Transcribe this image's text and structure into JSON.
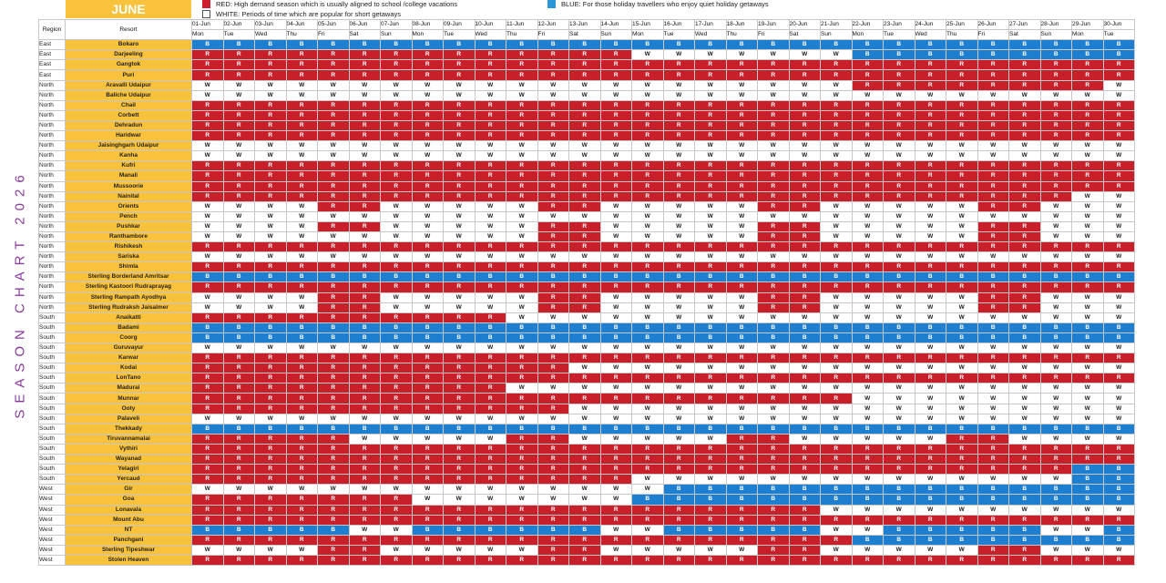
{
  "side_title": "SEASON CHART 2026",
  "month": "JUNE",
  "legend": {
    "red": "RED: High demand season which is usually aligned to school /college vacations",
    "white": "WHITE: Periods of time which are popular for short getaways",
    "blue": "BLUE: For those holiday travellers who enjoy quiet holiday getaways"
  },
  "colors": {
    "red": "#c8202a",
    "white": "#ffffff",
    "blue": "#1e7fd0",
    "resort_bg": "#f9c23c",
    "title": "#8a3a9b"
  },
  "headers": {
    "region": "Region",
    "resort": "Resort"
  },
  "dates": [
    "01-Jun",
    "02-Jun",
    "03-Jun",
    "04-Jun",
    "05-Jun",
    "06-Jun",
    "07-Jun",
    "08-Jun",
    "09-Jun",
    "10-Jun",
    "11-Jun",
    "12-Jun",
    "13-Jun",
    "14-Jun",
    "15-Jun",
    "16-Jun",
    "17-Jun",
    "18-Jun",
    "19-Jun",
    "20-Jun",
    "21-Jun",
    "22-Jun",
    "23-Jun",
    "24-Jun",
    "25-Jun",
    "26-Jun",
    "27-Jun",
    "28-Jun",
    "29-Jun",
    "30-Jun"
  ],
  "days": [
    "Mon",
    "Tue",
    "Wed",
    "Thu",
    "Fri",
    "Sat",
    "Sun",
    "Mon",
    "Tue",
    "Wed",
    "Thu",
    "Fri",
    "Sat",
    "Sun",
    "Mon",
    "Tue",
    "Wed",
    "Thu",
    "Fri",
    "Sat",
    "Sun",
    "Mon",
    "Tue",
    "Wed",
    "Thu",
    "Fri",
    "Sat",
    "Sun",
    "Mon",
    "Tue"
  ],
  "rows": [
    {
      "region": "East",
      "resort": "Bokaro",
      "s": "BBBBBBBBBBBBBBBBBBBBBBBBBBBBBB"
    },
    {
      "region": "East",
      "resort": "Darjeeling",
      "s": "RRRRRRRRRRRRRRWWWWWWWBBBBBBBBB"
    },
    {
      "region": "East",
      "resort": "Gangtok",
      "s": "RRRRRRRRRRRRRRRRRRRRRRRRRRRRRR"
    },
    {
      "region": "East",
      "resort": "Puri",
      "s": "RRRRRRRRRRRRRRRRRRRRRRRRRRRRRR"
    },
    {
      "region": "North",
      "resort": "Aravalli Udaipur",
      "s": "WWWWWWWWWWWWWWWWWWWWWRRRRRRRRW"
    },
    {
      "region": "North",
      "resort": "Baliche Udaipur",
      "s": "WWWWWWWWWWWWWWWWWWWWWWWWWWWWWW"
    },
    {
      "region": "North",
      "resort": "Chail",
      "s": "RRRRRRRRRRRRRRRRRRRRRRRRRRRRRR"
    },
    {
      "region": "North",
      "resort": "Corbett",
      "s": "RRRRRRRRRRRRRRRRRRRRRRRRRRRRRR"
    },
    {
      "region": "North",
      "resort": "Dehradun",
      "s": "RRRRRRRRRRRRRRRRRRRRRRRRRRRRRR"
    },
    {
      "region": "North",
      "resort": "Haridwar",
      "s": "RRRRRRRRRRRRRRRRRRRRRRRRRRRRRR"
    },
    {
      "region": "North",
      "resort": "Jaisinghgarh Udaipur",
      "s": "WWWWWWWWWWWWWWWWWWWWWWWWWWWWWW"
    },
    {
      "region": "North",
      "resort": "Kanha",
      "s": "WWWWWWWWWWWWWWWWWWWWWWWWWWWWWW"
    },
    {
      "region": "North",
      "resort": "Kufri",
      "s": "RRRRRRRRRRRRRRRRRRRRRRRRRRRRRR"
    },
    {
      "region": "North",
      "resort": "Manali",
      "s": "RRRRRRRRRRRRRRRRRRRRRRRRRRRRRR"
    },
    {
      "region": "North",
      "resort": "Mussoorie",
      "s": "RRRRRRRRRRRRRRRRRRRRRRRRRRRRRR"
    },
    {
      "region": "North",
      "resort": "Nainital",
      "s": "RRRRRRRRRRRRRRRRRRRRRRRRRRRRWW"
    },
    {
      "region": "North",
      "resort": "Orients",
      "s": "WWWWRRWWWWWRRWWWWWRRWWWWWRRWWW"
    },
    {
      "region": "North",
      "resort": "Pench",
      "s": "WWWWWWWWWWWWWWWWWWWWWWWWWWWWWW"
    },
    {
      "region": "North",
      "resort": "Pushkar",
      "s": "WWWWRRWWWWWRRWWWWWRRWWWWWRRWWW"
    },
    {
      "region": "North",
      "resort": "Ranthambore",
      "s": "WWWWWWWWWWWRRWWWWWRRWWWWWRRWWW"
    },
    {
      "region": "North",
      "resort": "Rishikesh",
      "s": "RRRRRRRRRRRRRRRRRRRRRRRRRRRRRR"
    },
    {
      "region": "North",
      "resort": "Sariska",
      "s": "WWWWWWWWWWWWWWWWWWWWWWWWWWWWWW"
    },
    {
      "region": "North",
      "resort": "Shimla",
      "s": "RRRRRRRRRRRRRRRRRRRRRRRRRRRRRR"
    },
    {
      "region": "North",
      "resort": "Sterling Borderland Amritsar",
      "s": "BBBBBBBBBBBBBBBBBBBBBBBBBBBBBB"
    },
    {
      "region": "North",
      "resort": "Sterling Kastoori Rudraprayag",
      "s": "RRRRRRRRRRRRRRRRRRRRRRRRRRRRRR"
    },
    {
      "region": "North",
      "resort": "Sterling Rampath Ayodhya",
      "s": "WWWWRRWWWWWRRWWWWWRRWWWWWRRWWW"
    },
    {
      "region": "North",
      "resort": "Sterling Rudraksh Jaisalmer",
      "s": "WWWWRRWWWWWRRWWWWWRRWWWWWRRWWW"
    },
    {
      "region": "South",
      "resort": "Anaikatti",
      "s": "RRRRRRRRRRWWWWWWWWWWWWWWWWWWWW"
    },
    {
      "region": "South",
      "resort": "Badami",
      "s": "BBBBBBBBBBBBBBBBBBBBBBBBBBBBBB"
    },
    {
      "region": "South",
      "resort": "Coorg",
      "s": "BBBBBBBBBBBBBBBBBBBBBBBBBBBBBB"
    },
    {
      "region": "South",
      "resort": "Guruvayur",
      "s": "WWWWWWWWWWWWWWWWWWWWWWWWWWWWWW"
    },
    {
      "region": "South",
      "resort": "Karwar",
      "s": "RRRRRRRRRRRRRRRRRRRRRRRRRRRRRR"
    },
    {
      "region": "South",
      "resort": "Kodai",
      "s": "RRRRRRRRRRRRWWWWWWWWWWWWWWWWWW"
    },
    {
      "region": "South",
      "resort": "LonTano",
      "s": "RRRRRRRRRRRRRRRRRRRRRRRRRRRRRR"
    },
    {
      "region": "South",
      "resort": "Madurai",
      "s": "RRRRRRRRRRWWWWWWWWWWWWWWWWWWWW"
    },
    {
      "region": "South",
      "resort": "Munnar",
      "s": "RRRRRRRRRRRRRRRRRRRRRWWWWWWWWW"
    },
    {
      "region": "South",
      "resort": "Ooty",
      "s": "RRRRRRRRRRRRWWWWWWWWWWWWWWWWWW"
    },
    {
      "region": "South",
      "resort": "Palaveli",
      "s": "WWWWWWWWWWWWWWWWWWWWWWWWWWWWWW"
    },
    {
      "region": "South",
      "resort": "Thekkady",
      "s": "BBBBBBBBBBBBBBBBBBBBBBBBBBBBBB"
    },
    {
      "region": "South",
      "resort": "Tiruvannamalai",
      "s": "RRRRRWWWWWRRWWWWWRRWWWWWRRWWWW"
    },
    {
      "region": "South",
      "resort": "Vythiri",
      "s": "RRRRRRRRRRRRRRRRRRRRRRRRRRRRRR"
    },
    {
      "region": "South",
      "resort": "Wayanad",
      "s": "RRRRRRRRRRRRRRRRRRRRRRRRRRRRRR"
    },
    {
      "region": "South",
      "resort": "Yelagiri",
      "s": "RRRRRRRRRRRRRRRRRRRRRRRRRRRRBB"
    },
    {
      "region": "South",
      "resort": "Yercaud",
      "s": "RRRRRRRRRRRRRRWWWWWWWWWWWWWWBB"
    },
    {
      "region": "West",
      "resort": "Gir",
      "s": "WWWWWWWWWWWWWWWBBBBBBBBBBBBBBB"
    },
    {
      "region": "West",
      "resort": "Goa",
      "s": "RRRRRRRWWWWWWWBBBBBBBBBBBBBBBB"
    },
    {
      "region": "West",
      "resort": "Lonavala",
      "s": "RRRRRRRRRRRRRRRRRRRRWWWWWWWWWW"
    },
    {
      "region": "West",
      "resort": "Mount Abu",
      "s": "RRRRRRRRRRRRRRRRRRRRRRRRRRRRRR"
    },
    {
      "region": "West",
      "resort": "NT",
      "s": "BBBBBWWBBBBBBWWBBBBBWWBBBBBWWB"
    },
    {
      "region": "West",
      "resort": "Panchgani",
      "s": "RRRRRRRRRRRRRRRRRRRRRBBBBBBBBB"
    },
    {
      "region": "West",
      "resort": "Sterling Tipeshwar",
      "s": "WWWWRRWWWWWRRWWWWWRRWWWWWRRWWW"
    },
    {
      "region": "West",
      "resort": "Stolen Heaven",
      "s": "RRRRRRRRRRRRRRRRRRRRRRRRRRRRRR"
    }
  ]
}
